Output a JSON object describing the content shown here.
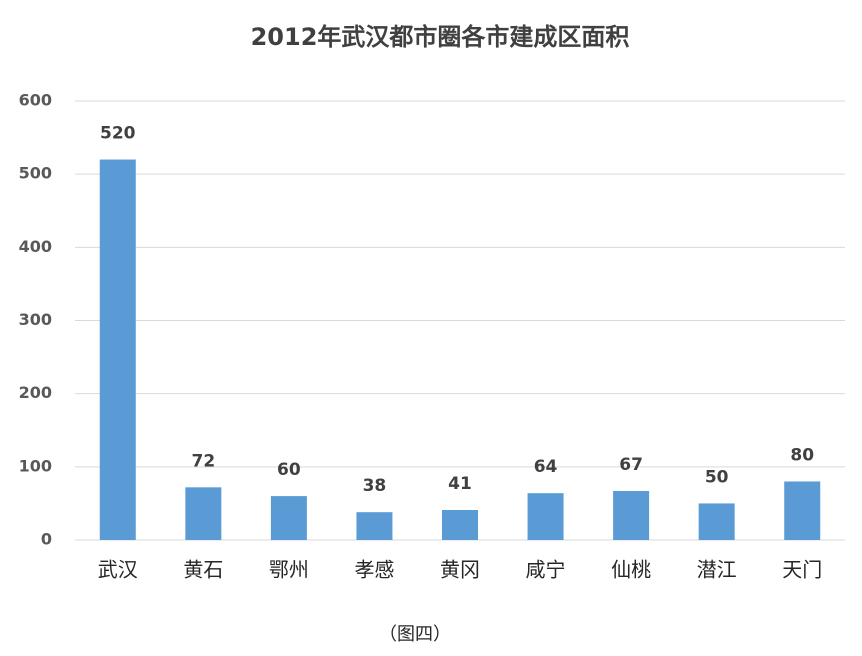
{
  "chart_data": {
    "type": "bar",
    "title": "2012年武汉都市圈各市建成区面积",
    "categories": [
      "武汉",
      "黄石",
      "鄂州",
      "孝感",
      "黄冈",
      "咸宁",
      "仙桃",
      "潜江",
      "天门"
    ],
    "values": [
      520,
      72,
      60,
      38,
      41,
      64,
      67,
      50,
      80
    ],
    "color": "#5b9bd5",
    "ylim": [
      0,
      600
    ],
    "yticks": [
      0,
      100,
      200,
      300,
      400,
      500,
      600
    ],
    "grid": true,
    "caption": "（图四）"
  }
}
